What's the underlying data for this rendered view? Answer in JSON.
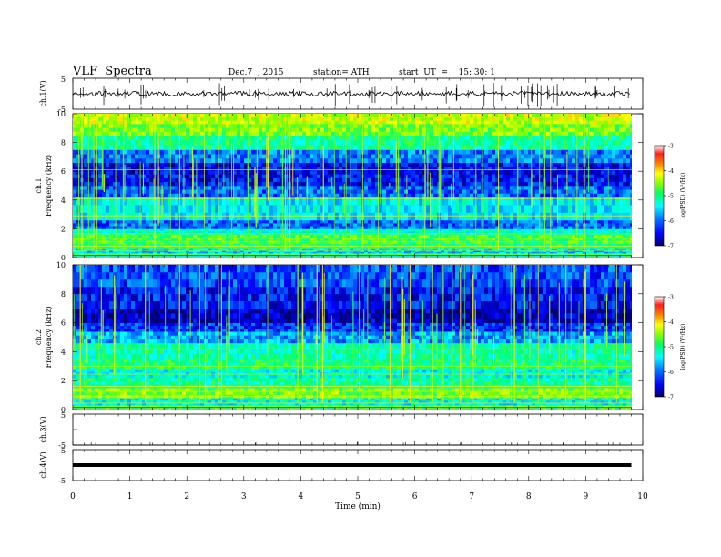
{
  "header": {
    "title": "VLF  Spectra",
    "date": "Dec.7  , 2015",
    "station": "station= ATH",
    "start": "start  UT  =    15: 30: 1"
  },
  "chart_data": [
    {
      "type": "line",
      "panel": "ch1_waveform",
      "ylabel": "ch.1(V)",
      "ylim": [
        -5,
        5
      ],
      "yticks": [
        "5",
        "-5"
      ],
      "baseline_value": 0
    },
    {
      "type": "heatmap",
      "panel": "ch1_spectrogram",
      "ylabel": [
        "ch.1",
        "Frequency (kHz)"
      ],
      "ylim": [
        0,
        10
      ],
      "yticks": [
        "0",
        "2",
        "4",
        "6",
        "8",
        "10"
      ],
      "colorbar": {
        "label": "log(PSD) (V²/Hz)",
        "range": [
          -7,
          -3
        ],
        "ticks": [
          "-3",
          "-4",
          "-5",
          "-6",
          "-7"
        ]
      }
    },
    {
      "type": "heatmap",
      "panel": "ch2_spectrogram",
      "ylabel": [
        "ch.2",
        "Frequency (kHz)"
      ],
      "ylim": [
        0,
        10
      ],
      "yticks": [
        "0",
        "2",
        "4",
        "6",
        "8",
        "10"
      ],
      "colorbar": {
        "label": "log(PSD) (V²/Hz)",
        "range": [
          -7,
          -3
        ],
        "ticks": [
          "-3",
          "-4",
          "-5",
          "-6",
          "-7"
        ]
      }
    },
    {
      "type": "line",
      "panel": "ch3_waveform",
      "ylabel": "ch.3(V)",
      "ylim": [
        -5,
        5
      ],
      "yticks": [
        "5",
        "-5"
      ],
      "baseline_value": -5
    },
    {
      "type": "line",
      "panel": "ch4_waveform",
      "ylabel": "ch.4(V)",
      "ylim": [
        -5,
        5
      ],
      "yticks": [
        "5",
        "-5"
      ],
      "baseline_value": 0
    }
  ],
  "xaxis": {
    "label": "Time  (min)",
    "range": [
      0,
      10
    ],
    "ticks": [
      "0",
      "1",
      "2",
      "3",
      "4",
      "5",
      "6",
      "7",
      "8",
      "9",
      "10"
    ],
    "data_end": 9.8
  },
  "colors": {
    "scale": [
      "#000070",
      "#0000ff",
      "#0080ff",
      "#00ffff",
      "#00ff80",
      "#80ff00",
      "#ffff00",
      "#ff8000",
      "#ff0000",
      "#ffffff"
    ]
  }
}
